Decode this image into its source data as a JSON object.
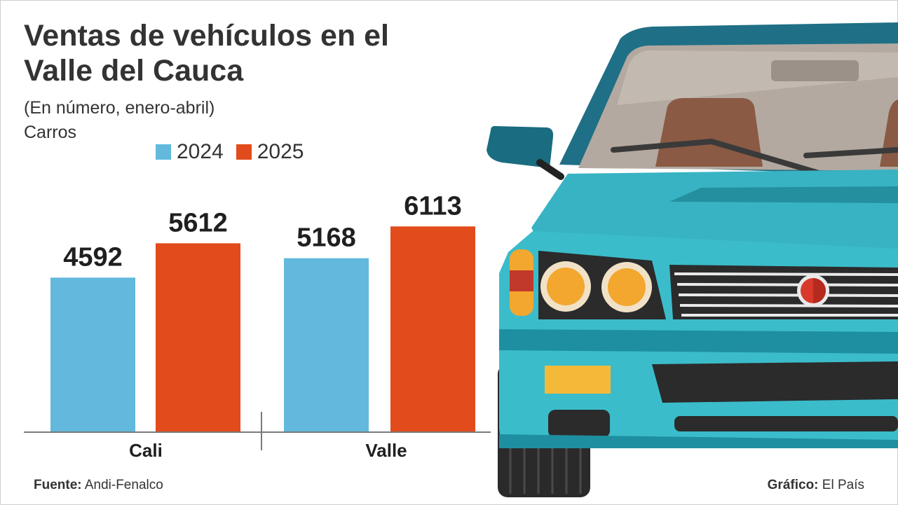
{
  "header": {
    "title": "Ventas de vehículos en el Valle del Cauca",
    "subtitle": "(En número, enero-abril)",
    "unit": "Carros"
  },
  "footer": {
    "source_label": "Fuente:",
    "source_value": "Andi-Fenalco",
    "credit_label": "Gráfico:",
    "credit_value": "El País"
  },
  "colors": {
    "series_2024": "#62b9dd",
    "series_2025": "#e24b1c",
    "car_body": "#3bbccb",
    "car_dark": "#1e8fa0"
  },
  "illustration": {
    "icon": "car-front-icon"
  },
  "chart_data": {
    "type": "bar",
    "title": "Ventas de vehículos en el Valle del Cauca",
    "subtitle": "(En número, enero-abril)",
    "categories": [
      "Cali",
      "Valle"
    ],
    "series": [
      {
        "name": "2024",
        "values": [
          4592,
          5168
        ]
      },
      {
        "name": "2025",
        "values": [
          5612,
          6113
        ]
      }
    ],
    "ylim": [
      0,
      7700
    ],
    "grid": false,
    "legend": "top"
  }
}
